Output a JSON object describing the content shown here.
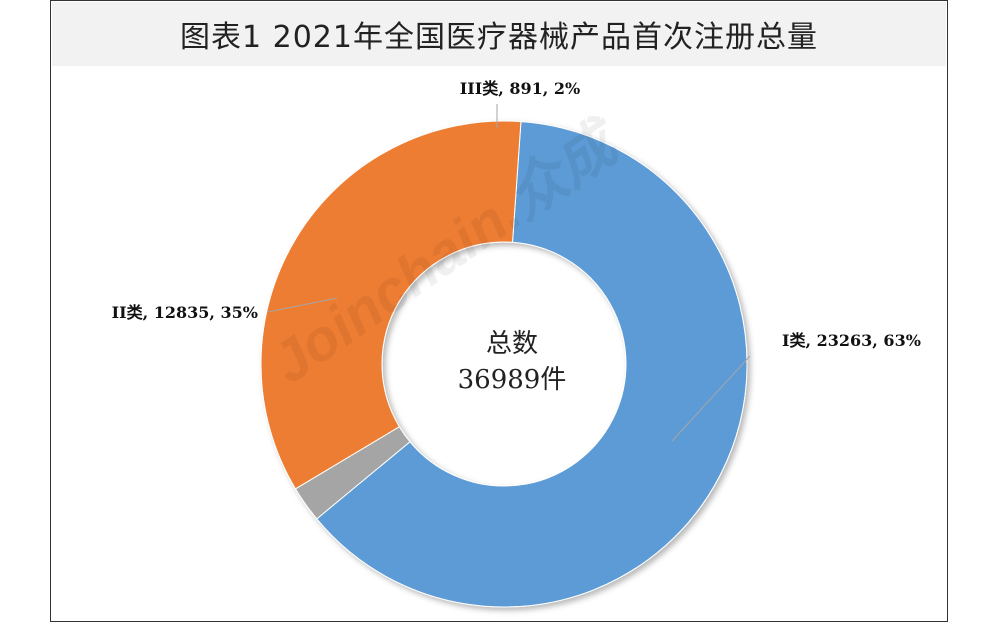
{
  "title": "图表1  2021年全国医疗器械产品首次注册总量",
  "watermark": "Joinchain.众成",
  "chart_data": {
    "type": "pie",
    "donut": true,
    "center_label": "总数",
    "center_value": "36989件",
    "slices": [
      {
        "name": "I类",
        "value": 23263,
        "percent": "63%",
        "label": "I类, 23263, 63%",
        "color": "#5b9bd5"
      },
      {
        "name": "III类",
        "value": 891,
        "percent": "2%",
        "label": "III类, 891, 2%",
        "color": "#a5a5a5"
      },
      {
        "name": "II类",
        "value": 12835,
        "percent": "35%",
        "label": "II类, 12835, 35%",
        "color": "#ed7d31"
      }
    ]
  }
}
